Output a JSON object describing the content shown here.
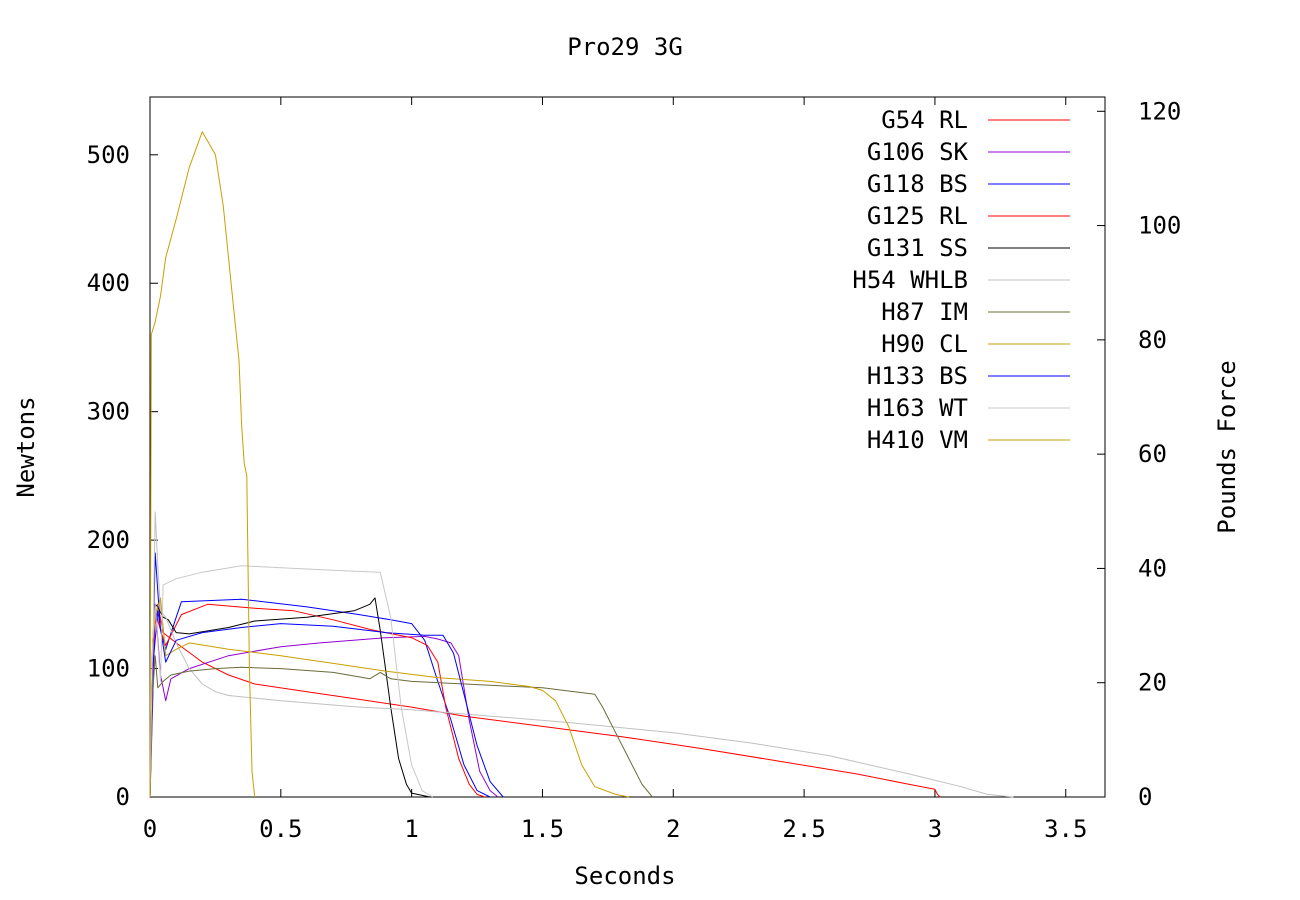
{
  "chart_data": {
    "type": "line",
    "title": "Pro29 3G",
    "xlabel": "Seconds",
    "ylabel": "Newtons",
    "y2label": "Pounds Force",
    "xlim": [
      0,
      3.65
    ],
    "ylim": [
      0,
      545
    ],
    "y2lim": [
      0,
      122.5
    ],
    "xticks": [
      {
        "value": 0,
        "label": "0"
      },
      {
        "value": 0.5,
        "label": "0.5"
      },
      {
        "value": 1,
        "label": "1"
      },
      {
        "value": 1.5,
        "label": "1.5"
      },
      {
        "value": 2,
        "label": "2"
      },
      {
        "value": 2.5,
        "label": "2.5"
      },
      {
        "value": 3,
        "label": "3"
      },
      {
        "value": 3.5,
        "label": "3.5"
      }
    ],
    "yticks": [
      {
        "value": 0,
        "label": "0"
      },
      {
        "value": 100,
        "label": "100"
      },
      {
        "value": 200,
        "label": "200"
      },
      {
        "value": 300,
        "label": "300"
      },
      {
        "value": 400,
        "label": "400"
      },
      {
        "value": 500,
        "label": "500"
      }
    ],
    "y2ticks": [
      {
        "value": 0,
        "label": "0"
      },
      {
        "value": 20,
        "label": "20"
      },
      {
        "value": 40,
        "label": "40"
      },
      {
        "value": 60,
        "label": "60"
      },
      {
        "value": 80,
        "label": "80"
      },
      {
        "value": 100,
        "label": "100"
      },
      {
        "value": 120,
        "label": "120"
      }
    ],
    "grid": false,
    "legend": "top-right",
    "series": [
      {
        "name": "G54 RL",
        "color": "#ff0000",
        "points": [
          [
            0,
            0
          ],
          [
            0.01,
            120
          ],
          [
            0.03,
            150
          ],
          [
            0.05,
            128
          ],
          [
            0.1,
            120
          ],
          [
            0.2,
            105
          ],
          [
            0.3,
            95
          ],
          [
            0.4,
            88
          ],
          [
            0.6,
            82
          ],
          [
            0.8,
            76
          ],
          [
            1.0,
            70
          ],
          [
            1.2,
            63
          ],
          [
            1.5,
            55
          ],
          [
            1.8,
            47
          ],
          [
            2.1,
            38
          ],
          [
            2.4,
            28
          ],
          [
            2.7,
            18
          ],
          [
            2.9,
            10
          ],
          [
            3.0,
            6
          ],
          [
            3.01,
            2
          ],
          [
            3.02,
            0
          ]
        ]
      },
      {
        "name": "G106 SK",
        "color": "#9400d3",
        "points": [
          [
            0,
            0
          ],
          [
            0.01,
            70
          ],
          [
            0.02,
            150
          ],
          [
            0.04,
            95
          ],
          [
            0.06,
            75
          ],
          [
            0.08,
            92
          ],
          [
            0.15,
            100
          ],
          [
            0.3,
            110
          ],
          [
            0.5,
            117
          ],
          [
            0.65,
            120
          ],
          [
            0.9,
            124
          ],
          [
            1.05,
            125
          ],
          [
            1.1,
            123
          ],
          [
            1.15,
            120
          ],
          [
            1.18,
            110
          ],
          [
            1.22,
            60
          ],
          [
            1.26,
            20
          ],
          [
            1.3,
            5
          ],
          [
            1.33,
            0
          ]
        ]
      },
      {
        "name": "G118 BS",
        "color": "#0000ff",
        "points": [
          [
            0,
            0
          ],
          [
            0.01,
            100
          ],
          [
            0.02,
            190
          ],
          [
            0.03,
            160
          ],
          [
            0.04,
            130
          ],
          [
            0.06,
            115
          ],
          [
            0.1,
            140
          ],
          [
            0.12,
            152
          ],
          [
            0.35,
            154
          ],
          [
            0.6,
            148
          ],
          [
            0.8,
            142
          ],
          [
            0.92,
            138
          ],
          [
            1.0,
            135
          ],
          [
            1.05,
            122
          ],
          [
            1.1,
            90
          ],
          [
            1.15,
            60
          ],
          [
            1.2,
            25
          ],
          [
            1.25,
            5
          ],
          [
            1.3,
            0
          ]
        ]
      },
      {
        "name": "G125 RL",
        "color": "#ff0000",
        "points": [
          [
            0,
            0
          ],
          [
            0.01,
            110
          ],
          [
            0.02,
            145
          ],
          [
            0.04,
            130
          ],
          [
            0.06,
            118
          ],
          [
            0.12,
            142
          ],
          [
            0.22,
            150
          ],
          [
            0.4,
            147
          ],
          [
            0.55,
            145
          ],
          [
            0.7,
            138
          ],
          [
            0.85,
            130
          ],
          [
            1.0,
            124
          ],
          [
            1.06,
            118
          ],
          [
            1.1,
            105
          ],
          [
            1.13,
            70
          ],
          [
            1.18,
            30
          ],
          [
            1.22,
            10
          ],
          [
            1.25,
            2
          ],
          [
            1.28,
            0
          ]
        ]
      },
      {
        "name": "G131 SS",
        "color": "#000000",
        "points": [
          [
            0,
            0
          ],
          [
            0.01,
            120
          ],
          [
            0.02,
            150
          ],
          [
            0.03,
            148
          ],
          [
            0.05,
            140
          ],
          [
            0.07,
            138
          ],
          [
            0.1,
            128
          ],
          [
            0.15,
            127
          ],
          [
            0.3,
            132
          ],
          [
            0.4,
            137
          ],
          [
            0.6,
            140
          ],
          [
            0.78,
            145
          ],
          [
            0.84,
            150
          ],
          [
            0.86,
            155
          ],
          [
            0.88,
            130
          ],
          [
            0.9,
            100
          ],
          [
            0.92,
            70
          ],
          [
            0.95,
            30
          ],
          [
            0.98,
            10
          ],
          [
            1.0,
            3
          ],
          [
            1.07,
            0
          ]
        ]
      },
      {
        "name": "H54 WHLB",
        "color": "#c0c0c0",
        "points": [
          [
            0,
            0
          ],
          [
            0.01,
            100
          ],
          [
            0.02,
            222
          ],
          [
            0.03,
            180
          ],
          [
            0.04,
            145
          ],
          [
            0.06,
            140
          ],
          [
            0.1,
            120
          ],
          [
            0.15,
            100
          ],
          [
            0.2,
            88
          ],
          [
            0.25,
            82
          ],
          [
            0.3,
            79
          ],
          [
            0.5,
            75
          ],
          [
            0.8,
            70
          ],
          [
            1.0,
            68
          ],
          [
            1.3,
            63
          ],
          [
            1.6,
            58
          ],
          [
            2.0,
            50
          ],
          [
            2.3,
            42
          ],
          [
            2.6,
            32
          ],
          [
            2.9,
            18
          ],
          [
            3.1,
            8
          ],
          [
            3.2,
            2
          ],
          [
            3.3,
            0
          ]
        ]
      },
      {
        "name": "H87 IM",
        "color": "#6b6b3a",
        "points": [
          [
            0,
            0
          ],
          [
            0.01,
            80
          ],
          [
            0.02,
            110
          ],
          [
            0.03,
            85
          ],
          [
            0.05,
            90
          ],
          [
            0.08,
            95
          ],
          [
            0.15,
            98
          ],
          [
            0.25,
            100
          ],
          [
            0.35,
            101
          ],
          [
            0.5,
            100
          ],
          [
            0.7,
            97
          ],
          [
            0.84,
            92
          ],
          [
            0.88,
            97
          ],
          [
            0.92,
            92
          ],
          [
            1.0,
            90
          ],
          [
            1.3,
            87
          ],
          [
            1.5,
            85
          ],
          [
            1.7,
            80
          ],
          [
            1.73,
            70
          ],
          [
            1.78,
            50
          ],
          [
            1.83,
            30
          ],
          [
            1.88,
            10
          ],
          [
            1.92,
            0
          ]
        ]
      },
      {
        "name": "H90 CL",
        "color": "#c8a000",
        "points": [
          [
            0,
            0
          ],
          [
            0.01,
            120
          ],
          [
            0.02,
            140
          ],
          [
            0.04,
            155
          ],
          [
            0.06,
            110
          ],
          [
            0.1,
            115
          ],
          [
            0.15,
            120
          ],
          [
            0.3,
            115
          ],
          [
            0.5,
            110
          ],
          [
            0.7,
            104
          ],
          [
            0.9,
            98
          ],
          [
            1.1,
            93
          ],
          [
            1.3,
            90
          ],
          [
            1.45,
            86
          ],
          [
            1.5,
            83
          ],
          [
            1.55,
            75
          ],
          [
            1.6,
            55
          ],
          [
            1.65,
            25
          ],
          [
            1.7,
            8
          ],
          [
            1.78,
            2
          ],
          [
            1.83,
            0
          ]
        ]
      },
      {
        "name": "H133 BS",
        "color": "#0000ff",
        "points": [
          [
            0,
            0
          ],
          [
            0.01,
            100
          ],
          [
            0.03,
            145
          ],
          [
            0.06,
            105
          ],
          [
            0.1,
            122
          ],
          [
            0.2,
            128
          ],
          [
            0.35,
            132
          ],
          [
            0.5,
            135
          ],
          [
            0.7,
            133
          ],
          [
            0.9,
            128
          ],
          [
            1.05,
            126
          ],
          [
            1.12,
            126
          ],
          [
            1.16,
            112
          ],
          [
            1.2,
            80
          ],
          [
            1.25,
            40
          ],
          [
            1.3,
            12
          ],
          [
            1.35,
            0
          ]
        ]
      },
      {
        "name": "H163 WT",
        "color": "#c8c8c8",
        "points": [
          [
            0,
            0
          ],
          [
            0.01,
            120
          ],
          [
            0.02,
            150
          ],
          [
            0.03,
            120
          ],
          [
            0.04,
            90
          ],
          [
            0.05,
            165
          ],
          [
            0.1,
            170
          ],
          [
            0.2,
            175
          ],
          [
            0.35,
            180
          ],
          [
            0.55,
            178
          ],
          [
            0.75,
            176
          ],
          [
            0.88,
            175
          ],
          [
            0.92,
            140
          ],
          [
            0.96,
            70
          ],
          [
            1.0,
            25
          ],
          [
            1.04,
            5
          ],
          [
            1.08,
            0
          ]
        ]
      },
      {
        "name": "H410 VM",
        "color": "#c8a000",
        "points": [
          [
            0,
            0
          ],
          [
            0.005,
            360
          ],
          [
            0.02,
            370
          ],
          [
            0.04,
            390
          ],
          [
            0.06,
            420
          ],
          [
            0.1,
            450
          ],
          [
            0.15,
            490
          ],
          [
            0.2,
            518
          ],
          [
            0.25,
            500
          ],
          [
            0.28,
            460
          ],
          [
            0.3,
            420
          ],
          [
            0.32,
            380
          ],
          [
            0.34,
            340
          ],
          [
            0.35,
            290
          ],
          [
            0.36,
            260
          ],
          [
            0.37,
            250
          ],
          [
            0.38,
            100
          ],
          [
            0.39,
            20
          ],
          [
            0.4,
            0
          ]
        ]
      }
    ]
  }
}
